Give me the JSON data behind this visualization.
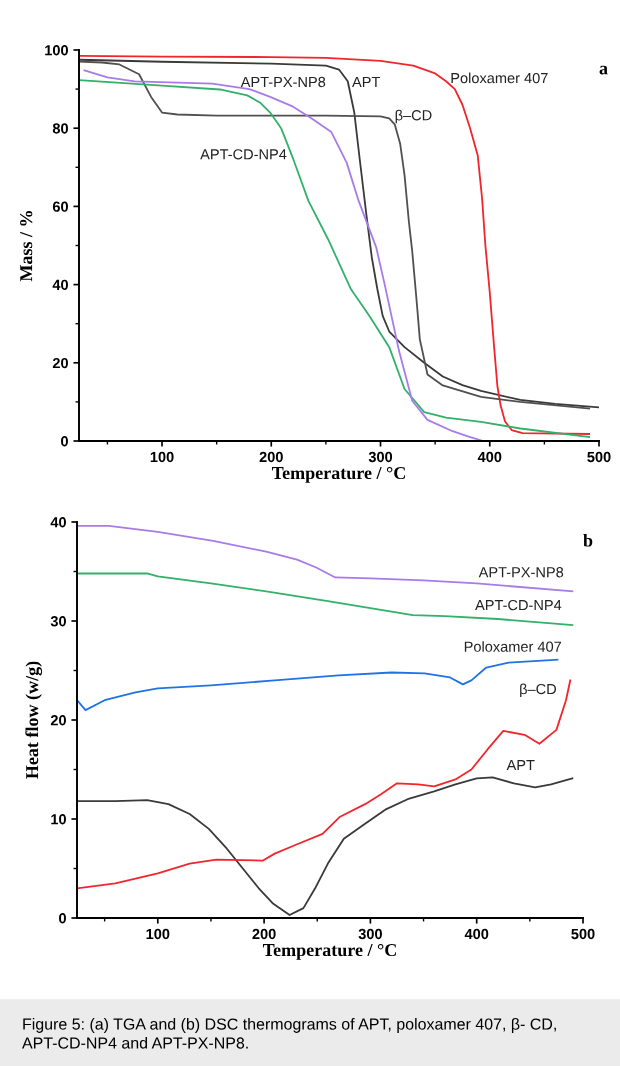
{
  "chart_data": [
    {
      "type": "line",
      "title": "a",
      "xlabel": "Temperature / °C",
      "ylabel": "Mass / %",
      "xlim": [
        24,
        500
      ],
      "ylim": [
        0,
        100
      ],
      "xticks": [
        {
          "value": 50,
          "label": null
        },
        100,
        {
          "value": 150,
          "label": null
        },
        200,
        {
          "value": 250,
          "label": null
        },
        300,
        {
          "value": 350,
          "label": null
        },
        400,
        {
          "value": 450,
          "label": null
        },
        500
      ],
      "yticks": [
        0,
        {
          "value": 10,
          "label": null
        },
        20,
        {
          "value": 30,
          "label": null
        },
        40,
        {
          "value": 50,
          "label": null
        },
        60,
        {
          "value": 70,
          "label": null
        },
        80,
        {
          "value": 90,
          "label": null
        },
        100
      ],
      "grid": false,
      "legend": false,
      "marker": "none",
      "line_style": "solid",
      "series": [
        {
          "name": "APT",
          "color": "#3a3a3a",
          "x": [
            25,
            100,
            200,
            250,
            262,
            270,
            276,
            281,
            287,
            292,
            297,
            302,
            308,
            322,
            340,
            357,
            375,
            392,
            428,
            460,
            500
          ],
          "values": [
            97.5,
            97,
            96.5,
            96,
            95,
            92,
            84,
            72,
            58,
            47,
            39,
            32,
            28,
            24,
            20,
            16.5,
            14.3,
            12.8,
            10.5,
            9.5,
            8.6
          ]
        },
        {
          "name": "Poloxamer 407",
          "color": "#f0262c",
          "x": [
            25,
            100,
            200,
            250,
            300,
            330,
            350,
            360,
            368,
            375,
            382,
            389,
            393,
            396,
            400,
            404,
            407,
            410,
            414,
            420,
            430,
            491
          ],
          "values": [
            98.5,
            98.3,
            98.2,
            98,
            97.2,
            96,
            94,
            92,
            90,
            86,
            80,
            73,
            62,
            50,
            38,
            24,
            14,
            9,
            5,
            2.8,
            2,
            1.8
          ]
        },
        {
          "name": "β–CD",
          "color": "#505050",
          "x": [
            25,
            45,
            61,
            79,
            90,
            100,
            114,
            150,
            200,
            250,
            300,
            308,
            313,
            318,
            322,
            326,
            329,
            333,
            336,
            343,
            357,
            392,
            428,
            491
          ],
          "values": [
            97,
            96.8,
            96.3,
            93.8,
            88,
            84,
            83.5,
            83.2,
            83.2,
            83.2,
            83,
            82.5,
            81,
            76,
            68,
            56,
            48.6,
            36,
            26,
            17,
            14.2,
            11.3,
            10,
            8.3
          ]
        },
        {
          "name": "APT-CD-NP4",
          "color": "#33b06a",
          "x": [
            24,
            100,
            153,
            178,
            190,
            199,
            209,
            220,
            234,
            252,
            273,
            290,
            308,
            322,
            340,
            360,
            392,
            428,
            491
          ],
          "values": [
            92.3,
            90.9,
            89.9,
            88.4,
            86.5,
            84,
            80,
            72.2,
            61.4,
            51.6,
            38.8,
            31.9,
            24,
            13.3,
            7.4,
            6,
            4.9,
            3.2,
            1
          ]
        },
        {
          "name": "APT-PX-NP8",
          "color": "#a77ce8",
          "x": [
            29,
            50,
            75,
            146,
            180,
            199,
            220,
            237,
            255,
            269,
            280,
            296,
            304,
            317,
            329,
            343,
            366,
            380,
            394
          ],
          "values": [
            94.8,
            93,
            92,
            91.4,
            90,
            88,
            85.5,
            82.5,
            79,
            71.2,
            61.4,
            49.6,
            39.8,
            23,
            10.3,
            5.4,
            2.5,
            1.2,
            0
          ]
        }
      ]
    },
    {
      "type": "line",
      "title": "b",
      "xlabel": "Temperature / °C",
      "ylabel": "Heat flow (w/g)",
      "xlim": [
        24,
        500
      ],
      "ylim": [
        0,
        40
      ],
      "xticks": [
        {
          "value": 50,
          "label": null
        },
        100,
        {
          "value": 150,
          "label": null
        },
        200,
        {
          "value": 250,
          "label": null
        },
        300,
        {
          "value": 350,
          "label": null
        },
        400,
        {
          "value": 450,
          "label": null
        },
        500
      ],
      "yticks": [
        0,
        {
          "value": 5,
          "label": null
        },
        10,
        {
          "value": 15,
          "label": null
        },
        20,
        {
          "value": 25,
          "label": null
        },
        30,
        {
          "value": 35,
          "label": null
        },
        40
      ],
      "grid": false,
      "legend": false,
      "marker": "none",
      "line_style": "solid",
      "series": [
        {
          "name": "APT",
          "color": "#3a3a3a",
          "x": [
            24,
            60,
            90,
            110,
            130,
            148,
            165,
            180,
            195,
            208,
            224,
            237,
            248,
            260,
            275,
            296,
            315,
            335,
            360,
            380,
            400,
            415,
            435,
            455,
            470,
            490
          ],
          "values": [
            11.8,
            11.8,
            11.9,
            11.5,
            10.5,
            9,
            7,
            5,
            3,
            1.5,
            0.3,
            1,
            3,
            5.5,
            8,
            9.6,
            11,
            12,
            12.8,
            13.5,
            14.1,
            14.2,
            13.6,
            13.2,
            13.5,
            14.1
          ]
        },
        {
          "name": "Poloxamer 407",
          "color": "#1f73e6",
          "x": [
            24,
            32,
            50,
            79,
            100,
            150,
            210,
            270,
            320,
            351,
            375,
            387,
            395,
            409,
            430,
            476
          ],
          "values": [
            22,
            21,
            22,
            22.8,
            23.2,
            23.5,
            24,
            24.5,
            24.8,
            24.7,
            24.3,
            23.6,
            24,
            25.3,
            25.8,
            26.1
          ]
        },
        {
          "name": "β–CD",
          "color": "#f0262c",
          "x": [
            24,
            60,
            100,
            130,
            155,
            199,
            210,
            230,
            255,
            271,
            295,
            310,
            325,
            345,
            360,
            380,
            395,
            410,
            425,
            445,
            459,
            475,
            484,
            488
          ],
          "values": [
            3,
            3.5,
            4.5,
            5.5,
            5.9,
            5.8,
            6.5,
            7.4,
            8.5,
            10.2,
            11.5,
            12.5,
            13.6,
            13.5,
            13.3,
            14,
            15,
            17,
            18.9,
            18.5,
            17.6,
            19,
            22,
            24
          ]
        },
        {
          "name": "APT-CD-NP4",
          "color": "#33b06a",
          "x": [
            24,
            90,
            100,
            150,
            202,
            260,
            300,
            340,
            370,
            420,
            490
          ],
          "values": [
            34.8,
            34.8,
            34.5,
            33.8,
            33,
            32,
            31.3,
            30.6,
            30.5,
            30.2,
            29.6
          ]
        },
        {
          "name": "APT-PX-NP8",
          "color": "#a77ce8",
          "x": [
            24,
            54,
            100,
            152,
            202,
            231,
            249,
            267,
            300,
            350,
            400,
            490
          ],
          "values": [
            39.6,
            39.6,
            39,
            38.1,
            37,
            36.2,
            35.4,
            34.4,
            34.3,
            34.1,
            33.8,
            33
          ]
        }
      ],
      "annotations": [
        "Figure 5: (a) TGA and (b) DSC thermograms of APT, poloxamer 407, β- CD, APT-CD-NP4 and APT-PX-NP8."
      ]
    }
  ]
}
